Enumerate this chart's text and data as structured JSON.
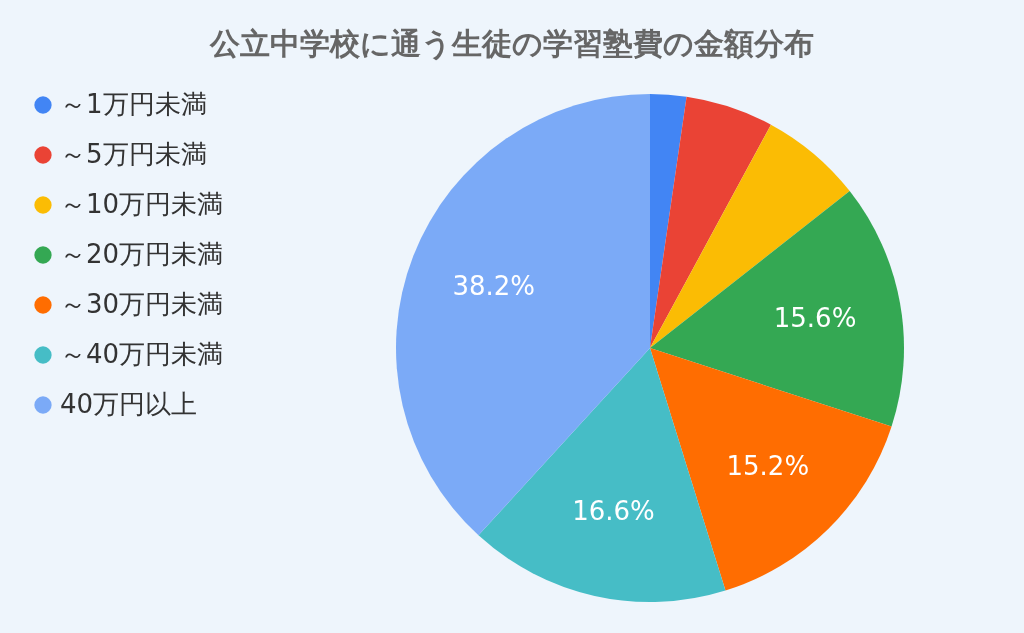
{
  "chart_data": {
    "type": "pie",
    "title": "公立中学校に通う生徒の学習塾費の金額分布",
    "categories": [
      "～1万円未満",
      "～5万円未満",
      "～10万円未満",
      "～20万円未満",
      "～30万円未満",
      "～40万円未満",
      "40万円以上"
    ],
    "values": [
      2.3,
      5.6,
      6.5,
      15.6,
      15.2,
      16.6,
      38.2
    ],
    "colors": [
      "#4285f4",
      "#ea4335",
      "#fbbc04",
      "#34a853",
      "#ff6d01",
      "#46bdc6",
      "#7baaf7"
    ],
    "value_labels": [
      null,
      null,
      null,
      "15.6%",
      "15.2%",
      "16.6%",
      "38.2%"
    ],
    "legend": "left"
  }
}
